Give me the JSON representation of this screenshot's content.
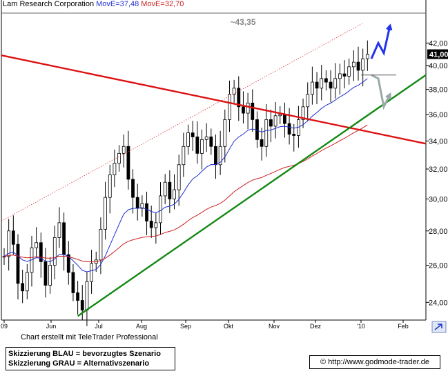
{
  "legend": {
    "name": "Lam Research Corporation",
    "ma1": "MovE=37,48",
    "ma2": "MovE=32,70"
  },
  "footer": {
    "credit": "Chart erstellt mit TeleTrader Professional",
    "scenario_blue": "Skizzierung BLAU = bevorzugtes Szenario",
    "scenario_grey": "Skizzierung GRAU = Alternativszenario",
    "url": "© http://www.godmode-trader.de"
  },
  "colors": {
    "candles": "#000000",
    "ma_short": "#1f2fd0",
    "ma_long": "#cc1f1f",
    "downtrend": "#dd1111",
    "uptrend": "#118811",
    "channel": "#dd3333",
    "scenario_blue": "#2233ee",
    "scenario_grey": "#99aaaa",
    "price_box": "#000000"
  },
  "chart_data": {
    "type": "candlestick",
    "title": "Lam Research Corporation",
    "x_tick_labels": [
      "09",
      "Jun",
      "Jul",
      "Aug",
      "Sep",
      "Okt",
      "Nov",
      "Dez",
      "'10",
      "Feb"
    ],
    "y_ticks": [
      24,
      26,
      28,
      30,
      32,
      34,
      36,
      38,
      40,
      42
    ],
    "y_tick_labels": [
      "24,00",
      "26,00",
      "28,00",
      "30,00",
      "32,00",
      "34,00",
      "36,00",
      "38,00",
      "40,00",
      "42,00"
    ],
    "ylim": [
      23.1,
      44.8
    ],
    "y_scale": "log",
    "current_price": 41.0,
    "current_price_label": "41,00",
    "annotation": "~43,35",
    "resistance_level": 43.35,
    "close_series": {
      "start_month": "2009-05",
      "values": [
        26.5,
        28.0,
        27.2,
        25.0,
        24.6,
        25.6,
        27.0,
        27.3,
        26.2,
        24.9,
        26.0,
        27.6,
        28.5,
        26.6,
        25.6,
        24.5,
        24.1,
        23.6,
        25.1,
        26.1,
        26.3,
        28.1,
        30.1,
        31.6,
        32.4,
        33.1,
        33.6,
        31.3,
        30.1,
        29.4,
        29.7,
        28.6,
        28.2,
        28.5,
        30.2,
        31.1,
        30.0,
        30.6,
        32.3,
        33.6,
        34.6,
        34.3,
        33.1,
        34.1,
        34.3,
        33.6,
        32.3,
        33.6,
        35.6,
        37.6,
        38.1,
        36.6,
        36.1,
        36.9,
        35.6,
        34.1,
        33.6,
        35.6,
        35.1,
        35.9,
        36.0,
        35.3,
        34.5,
        34.4,
        35.6,
        36.6,
        37.6,
        38.6,
        38.1,
        38.9,
        38.6,
        38.1,
        38.9,
        39.3,
        39.1,
        39.9,
        40.3,
        39.6,
        40.6,
        41.0
      ]
    },
    "moving_averages": [
      {
        "name": "MovE=37,48",
        "last_value": 37.48
      },
      {
        "name": "MovE=32,70",
        "last_value": 32.7
      }
    ],
    "trendlines": [
      {
        "kind": "downtrend",
        "from": [
          0,
          40.9
        ],
        "to": [
          1,
          33.8
        ]
      },
      {
        "kind": "uptrend",
        "from": [
          0.18,
          23.3
        ],
        "to": [
          1,
          39.2
        ]
      },
      {
        "kind": "channel",
        "from": [
          0,
          28.6
        ],
        "to": [
          0.85,
          43.8
        ]
      }
    ],
    "scenarios": [
      {
        "name": "blau",
        "path": [
          40.6,
          42.0,
          41.1,
          43.6
        ]
      },
      {
        "name": "grau",
        "path": [
          39.2,
          38.9,
          36.6,
          37.6
        ]
      }
    ]
  }
}
